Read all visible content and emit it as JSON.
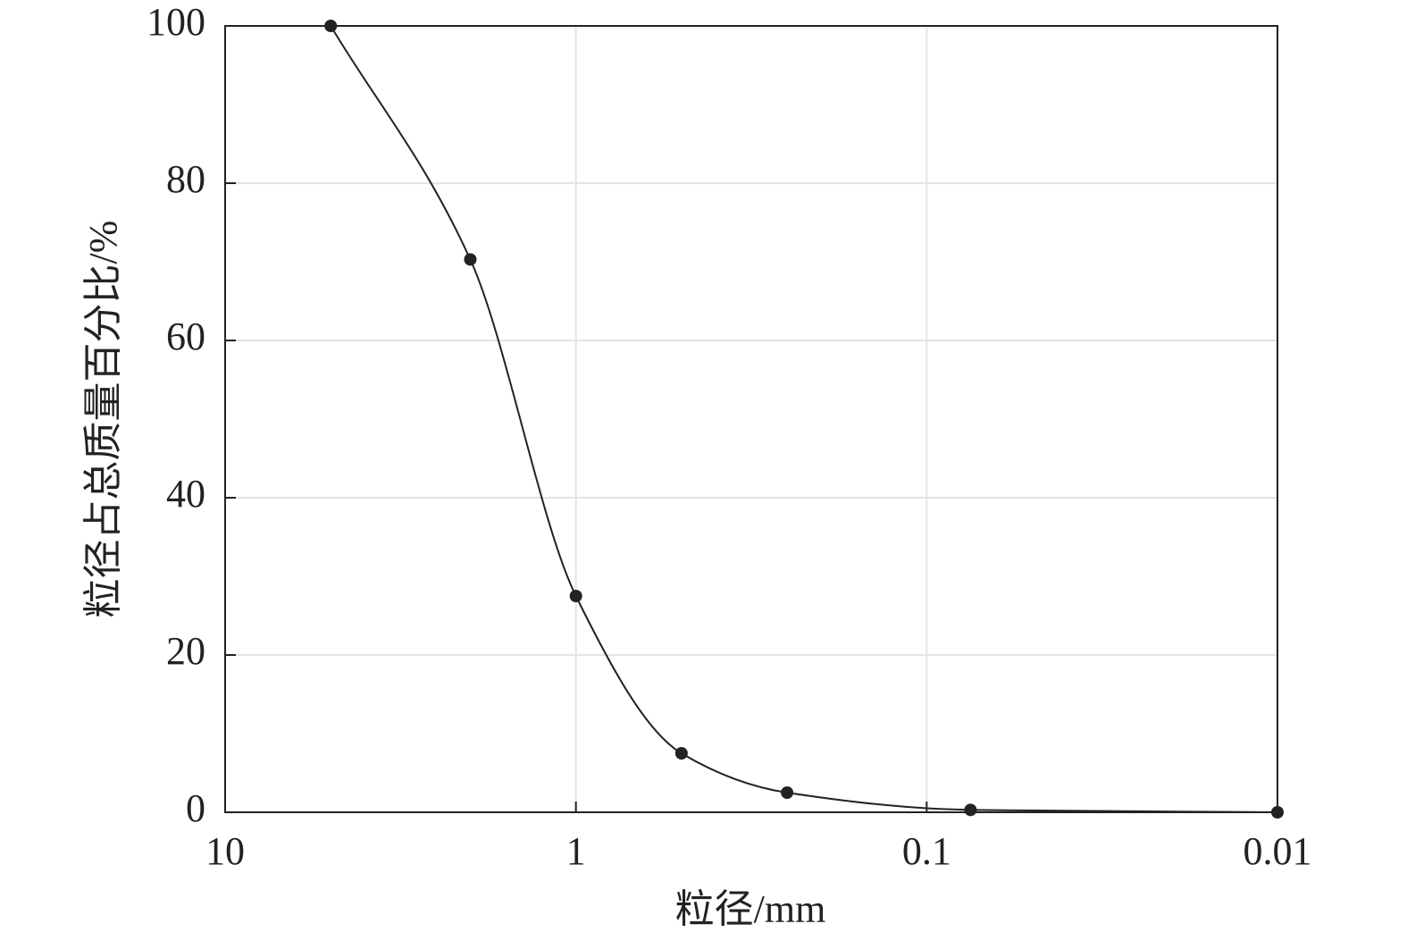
{
  "chart_data": {
    "type": "line",
    "x_label": "粒径/mm",
    "y_label": "粒径占总质量百分比/%",
    "x": [
      5,
      2,
      1,
      0.5,
      0.25,
      0.075,
      0.01
    ],
    "series": [
      {
        "color": "#222222",
        "values": [
          100,
          70.3,
          27.5,
          7.5,
          2.5,
          0.3,
          0
        ]
      }
    ],
    "xlim": [
      10,
      0.01
    ],
    "xticks": [
      10,
      1,
      0.1,
      0.01
    ],
    "xscale": "log",
    "ylim": [
      0,
      100
    ],
    "yticks": [
      0,
      20,
      40,
      60,
      80,
      100
    ],
    "grid": true
  }
}
